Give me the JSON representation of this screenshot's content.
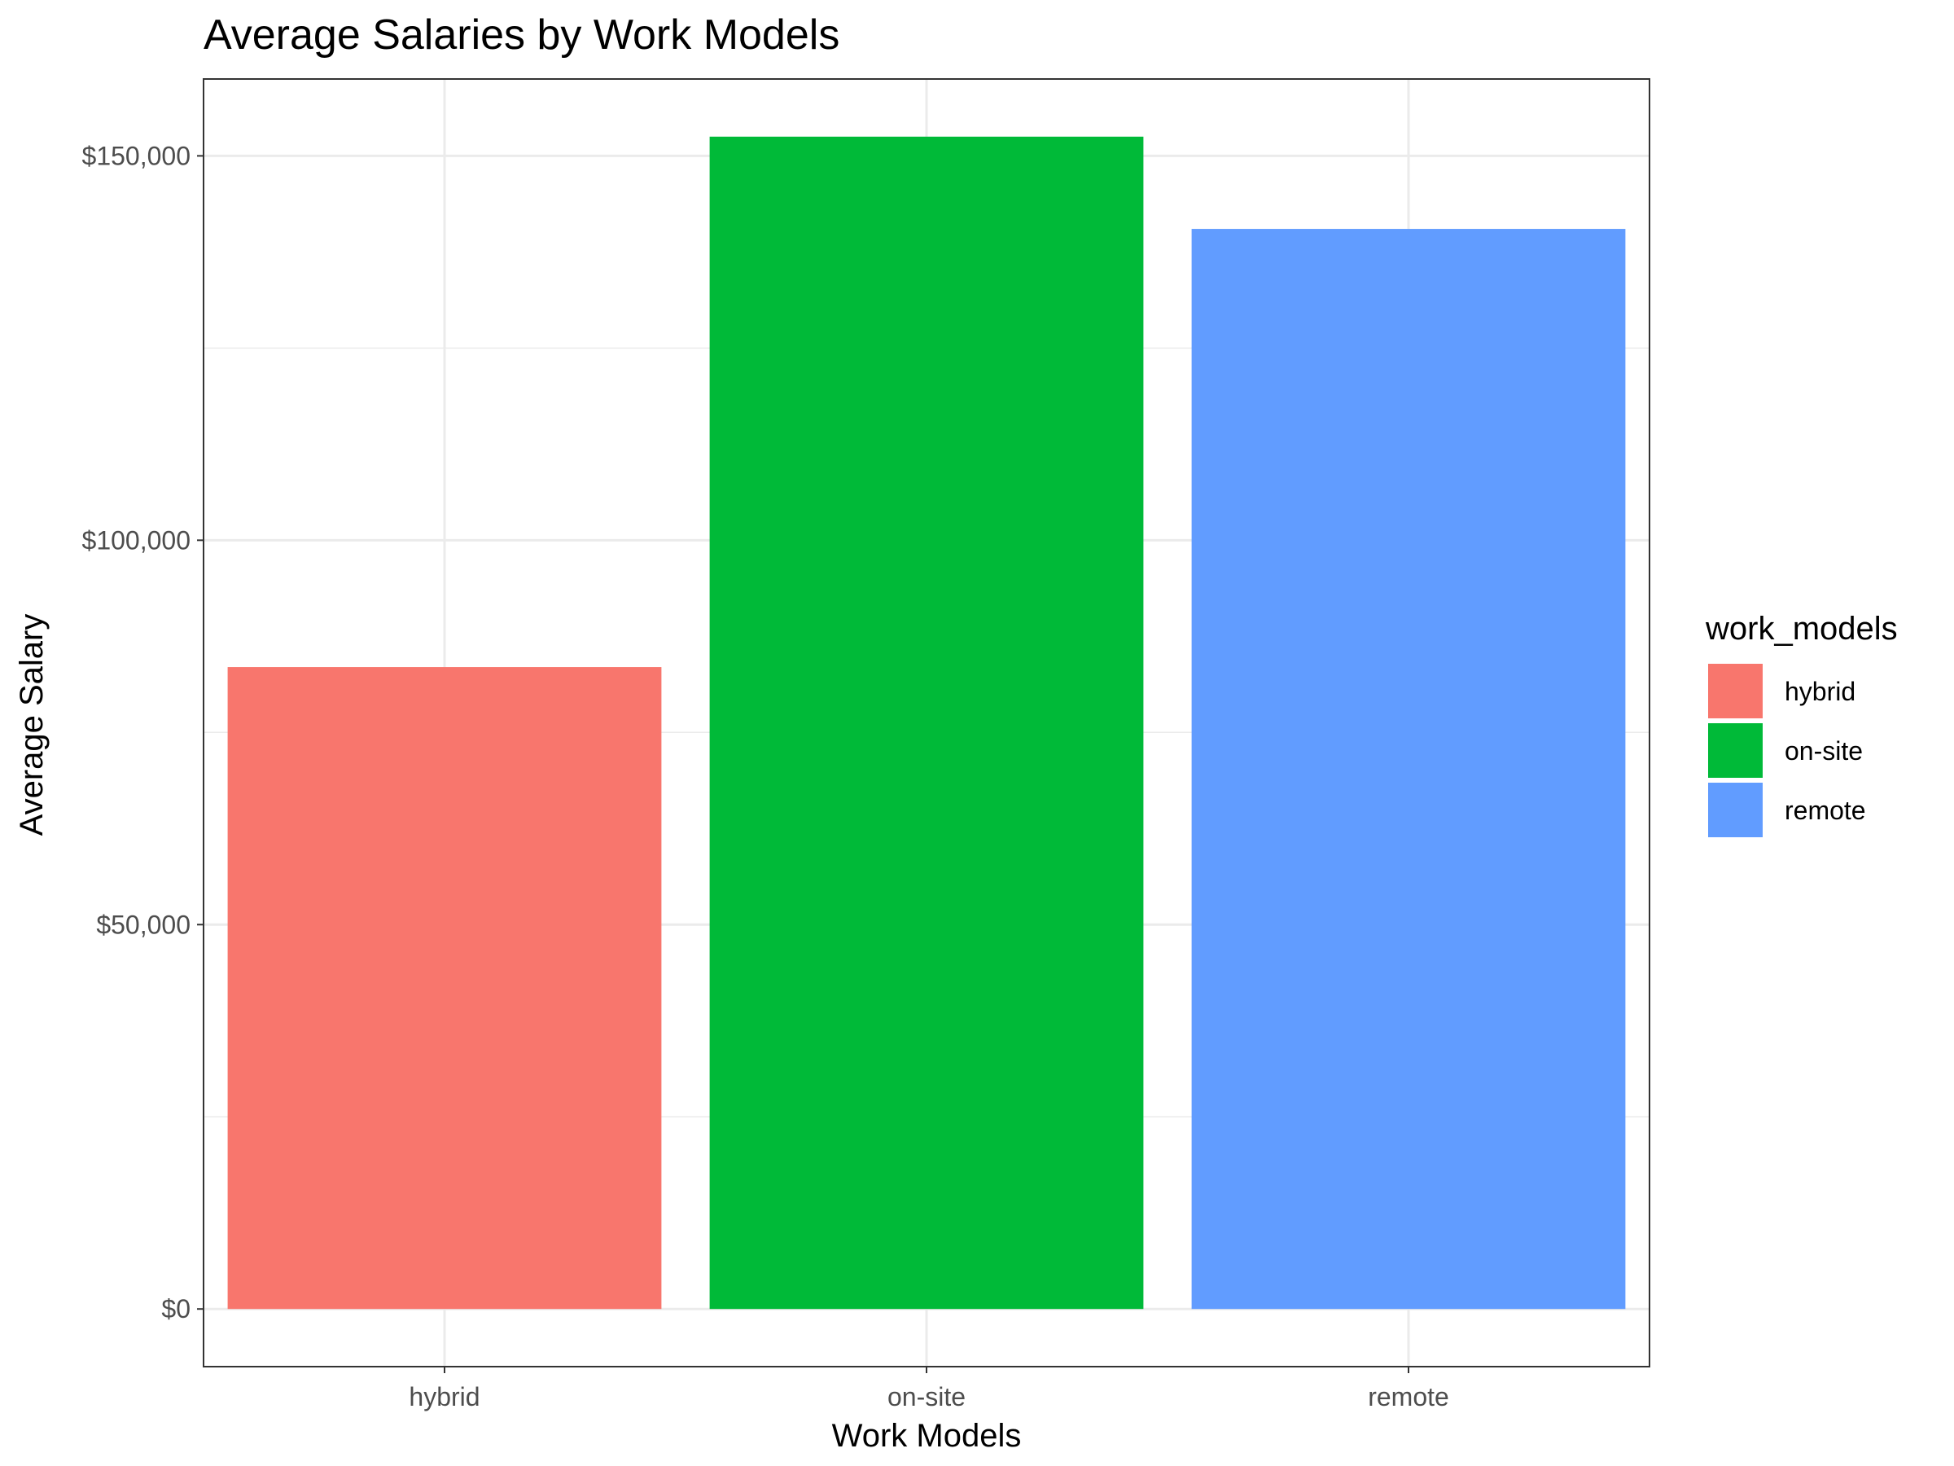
{
  "chart_data": {
    "type": "bar",
    "title": "Average Salaries by Work Models",
    "xlabel": "Work Models",
    "ylabel": "Average Salary",
    "categories": [
      "hybrid",
      "on-site",
      "remote"
    ],
    "values": [
      83500,
      152500,
      140500
    ],
    "colors": [
      "#F8766D",
      "#00BA38",
      "#619CFF"
    ],
    "ylim": [
      -7500,
      160000
    ],
    "yticks": [
      0,
      50000,
      100000,
      150000
    ],
    "ytick_labels": [
      "$0",
      "$50,000",
      "$100,000",
      "$150,000"
    ],
    "yminor": [
      25000,
      75000,
      125000
    ],
    "grid": true,
    "legend": {
      "title": "work_models",
      "position": "right",
      "items": [
        "hybrid",
        "on-site",
        "remote"
      ]
    }
  }
}
